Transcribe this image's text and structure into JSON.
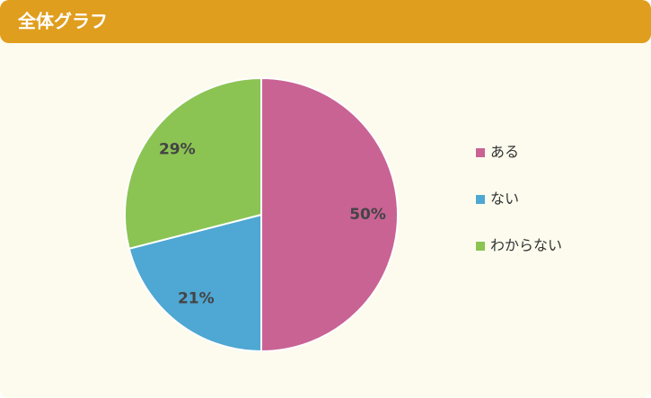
{
  "chart_data": {
    "type": "pie",
    "title": "全体グラフ",
    "categories": [
      "ある",
      "ない",
      "わからない"
    ],
    "values": [
      50,
      21,
      29
    ],
    "value_labels": [
      "50%",
      "21%",
      "29%"
    ],
    "colors": [
      "#c96394",
      "#4fa7d3",
      "#8bc453"
    ],
    "legend": "right"
  }
}
